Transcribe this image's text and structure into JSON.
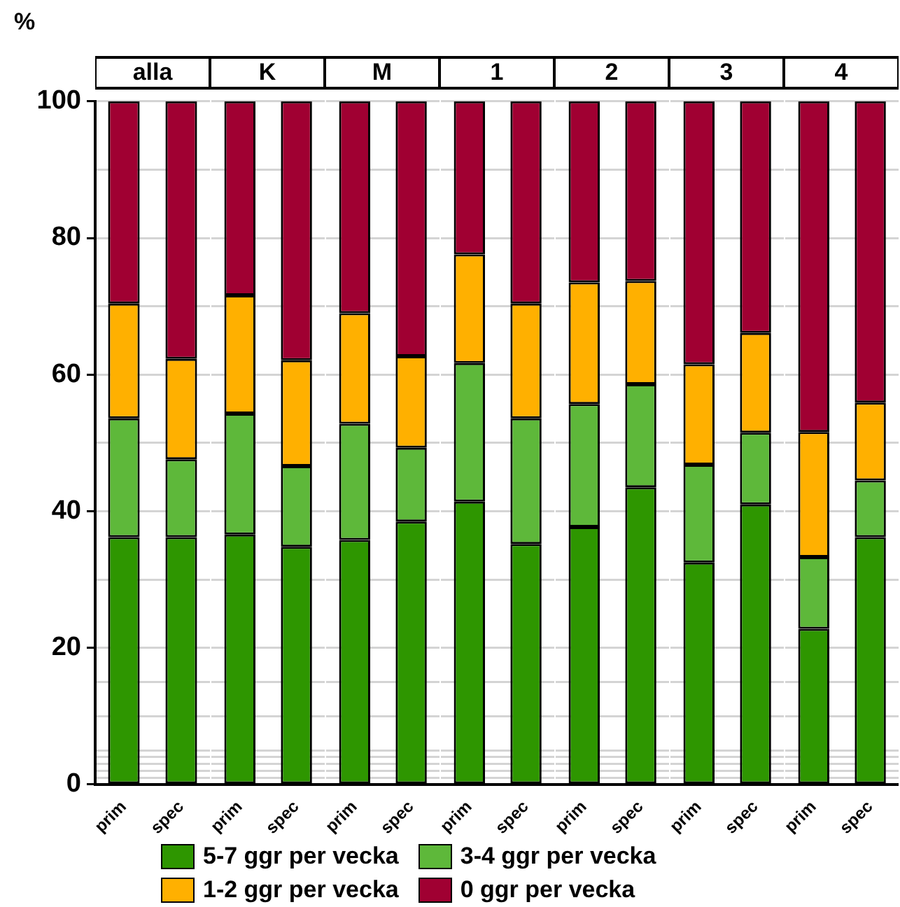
{
  "chart_data": [
    {
      "type": "bar",
      "title": "alla",
      "ylabel": "%",
      "categories": [
        "prim",
        "spec"
      ],
      "stacked": true,
      "grid": "y",
      "legend": "bottom",
      "ylim": [
        0,
        100
      ],
      "yticks": [
        0,
        {
          "value": 1,
          "label": null
        },
        {
          "value": 2,
          "label": null
        },
        {
          "value": 3,
          "label": null
        },
        {
          "value": 4,
          "label": null
        },
        {
          "value": 5,
          "label": null
        },
        {
          "value": 10,
          "label": null
        },
        {
          "value": 15,
          "label": null
        },
        20,
        {
          "value": 30,
          "label": null
        },
        40,
        {
          "value": 50,
          "label": null
        },
        60,
        {
          "value": 70,
          "label": null
        },
        80,
        {
          "value": 90,
          "label": null
        },
        100
      ],
      "series": [
        {
          "name": "5-7 ggr per vecka",
          "color": "#2e9600",
          "values": [
            36.2,
            36.2
          ]
        },
        {
          "name": "3-4 ggr per vecka",
          "color": "#5eb83a",
          "values": [
            17.4,
            11.4
          ]
        },
        {
          "name": "1-2 ggr per vecka",
          "color": "#ffb000",
          "values": [
            16.8,
            14.7
          ]
        },
        {
          "name": "0 ggr per vecka",
          "color": "#a00032",
          "values": [
            29.6,
            37.7
          ]
        }
      ]
    },
    {
      "type": "bar",
      "title": "K",
      "categories": [
        "prim",
        "spec"
      ],
      "stacked": true,
      "grid": "y",
      "tick_labels": "x",
      "ylim": [
        0,
        100
      ],
      "yticks": [
        0,
        {
          "value": 1,
          "label": null
        },
        {
          "value": 2,
          "label": null
        },
        {
          "value": 3,
          "label": null
        },
        {
          "value": 4,
          "label": null
        },
        {
          "value": 5,
          "label": null
        },
        {
          "value": 10,
          "label": null
        },
        {
          "value": 15,
          "label": null
        },
        20,
        {
          "value": 30,
          "label": null
        },
        40,
        {
          "value": 50,
          "label": null
        },
        60,
        {
          "value": 70,
          "label": null
        },
        80,
        {
          "value": 90,
          "label": null
        },
        100
      ],
      "series": [
        {
          "color": "#2e9600",
          "values": [
            36.6,
            34.8
          ]
        },
        {
          "color": "#5eb83a",
          "values": [
            17.7,
            11.8
          ]
        },
        {
          "color": "#ffb000",
          "values": [
            17.3,
            15.5
          ]
        },
        {
          "color": "#a00032",
          "values": [
            28.4,
            37.9
          ]
        }
      ]
    },
    {
      "type": "bar",
      "title": "M",
      "categories": [
        "prim",
        "spec"
      ],
      "stacked": true,
      "grid": "y",
      "tick_labels": "x",
      "ylim": [
        0,
        100
      ],
      "yticks": [
        0,
        {
          "value": 1,
          "label": null
        },
        {
          "value": 2,
          "label": null
        },
        {
          "value": 3,
          "label": null
        },
        {
          "value": 4,
          "label": null
        },
        {
          "value": 5,
          "label": null
        },
        {
          "value": 10,
          "label": null
        },
        {
          "value": 15,
          "label": null
        },
        20,
        {
          "value": 30,
          "label": null
        },
        40,
        {
          "value": 50,
          "label": null
        },
        60,
        {
          "value": 70,
          "label": null
        },
        80,
        {
          "value": 90,
          "label": null
        },
        100
      ],
      "series": [
        {
          "color": "#2e9600",
          "values": [
            35.8,
            38.5
          ]
        },
        {
          "color": "#5eb83a",
          "values": [
            17.0,
            10.8
          ]
        },
        {
          "color": "#ffb000",
          "values": [
            16.2,
            13.4
          ]
        },
        {
          "color": "#a00032",
          "values": [
            31.0,
            37.3
          ]
        }
      ]
    },
    {
      "type": "bar",
      "title": "1",
      "categories": [
        "prim",
        "spec"
      ],
      "stacked": true,
      "grid": "y",
      "tick_labels": "x",
      "ylim": [
        0,
        100
      ],
      "yticks": [
        0,
        {
          "value": 1,
          "label": null
        },
        {
          "value": 2,
          "label": null
        },
        {
          "value": 3,
          "label": null
        },
        {
          "value": 4,
          "label": null
        },
        {
          "value": 5,
          "label": null
        },
        {
          "value": 10,
          "label": null
        },
        {
          "value": 15,
          "label": null
        },
        20,
        {
          "value": 30,
          "label": null
        },
        40,
        {
          "value": 50,
          "label": null
        },
        60,
        {
          "value": 70,
          "label": null
        },
        80,
        {
          "value": 90,
          "label": null
        },
        100
      ],
      "series": [
        {
          "color": "#2e9600",
          "values": [
            41.4,
            35.2
          ]
        },
        {
          "color": "#5eb83a",
          "values": [
            20.3,
            18.4
          ]
        },
        {
          "color": "#ffb000",
          "values": [
            15.9,
            16.8
          ]
        },
        {
          "color": "#a00032",
          "values": [
            22.4,
            29.6
          ]
        }
      ]
    },
    {
      "type": "bar",
      "title": "2",
      "categories": [
        "prim",
        "spec"
      ],
      "stacked": true,
      "grid": "y",
      "tick_labels": "x",
      "ylim": [
        0,
        100
      ],
      "yticks": [
        0,
        {
          "value": 1,
          "label": null
        },
        {
          "value": 2,
          "label": null
        },
        {
          "value": 3,
          "label": null
        },
        {
          "value": 4,
          "label": null
        },
        {
          "value": 5,
          "label": null
        },
        {
          "value": 10,
          "label": null
        },
        {
          "value": 15,
          "label": null
        },
        20,
        {
          "value": 30,
          "label": null
        },
        40,
        {
          "value": 50,
          "label": null
        },
        60,
        {
          "value": 70,
          "label": null
        },
        80,
        {
          "value": 90,
          "label": null
        },
        100
      ],
      "series": [
        {
          "color": "#2e9600",
          "values": [
            37.7,
            43.5
          ]
        },
        {
          "color": "#5eb83a",
          "values": [
            18.0,
            15.1
          ]
        },
        {
          "color": "#ffb000",
          "values": [
            17.8,
            15.1
          ]
        },
        {
          "color": "#a00032",
          "values": [
            26.5,
            26.3
          ]
        }
      ]
    },
    {
      "type": "bar",
      "title": "3",
      "categories": [
        "prim",
        "spec"
      ],
      "stacked": true,
      "grid": "y",
      "tick_labels": "x",
      "ylim": [
        0,
        100
      ],
      "yticks": [
        0,
        {
          "value": 1,
          "label": null
        },
        {
          "value": 2,
          "label": null
        },
        {
          "value": 3,
          "label": null
        },
        {
          "value": 4,
          "label": null
        },
        {
          "value": 5,
          "label": null
        },
        {
          "value": 10,
          "label": null
        },
        {
          "value": 15,
          "label": null
        },
        20,
        {
          "value": 30,
          "label": null
        },
        40,
        {
          "value": 50,
          "label": null
        },
        60,
        {
          "value": 70,
          "label": null
        },
        80,
        {
          "value": 90,
          "label": null
        },
        100
      ],
      "series": [
        {
          "color": "#2e9600",
          "values": [
            32.5,
            41.0
          ]
        },
        {
          "color": "#5eb83a",
          "values": [
            14.3,
            10.5
          ]
        },
        {
          "color": "#ffb000",
          "values": [
            14.7,
            14.6
          ]
        },
        {
          "color": "#a00032",
          "values": [
            38.5,
            33.9
          ]
        }
      ]
    },
    {
      "type": "bar",
      "title": "4",
      "categories": [
        "prim",
        "spec"
      ],
      "stacked": true,
      "grid": "y",
      "tick_labels": "x",
      "ylim": [
        0,
        100
      ],
      "yticks": [
        0,
        {
          "value": 1,
          "label": null
        },
        {
          "value": 2,
          "label": null
        },
        {
          "value": 3,
          "label": null
        },
        {
          "value": 4,
          "label": null
        },
        {
          "value": 5,
          "label": null
        },
        {
          "value": 10,
          "label": null
        },
        {
          "value": 15,
          "label": null
        },
        20,
        {
          "value": 30,
          "label": null
        },
        40,
        {
          "value": 50,
          "label": null
        },
        60,
        {
          "value": 70,
          "label": null
        },
        80,
        {
          "value": 90,
          "label": null
        },
        100
      ],
      "series": [
        {
          "color": "#2e9600",
          "values": [
            22.8,
            36.2
          ]
        },
        {
          "color": "#5eb83a",
          "values": [
            10.5,
            8.3
          ]
        },
        {
          "color": "#ffb000",
          "values": [
            18.3,
            11.4
          ]
        },
        {
          "color": "#a00032",
          "values": [
            48.4,
            44.1
          ]
        }
      ]
    }
  ]
}
